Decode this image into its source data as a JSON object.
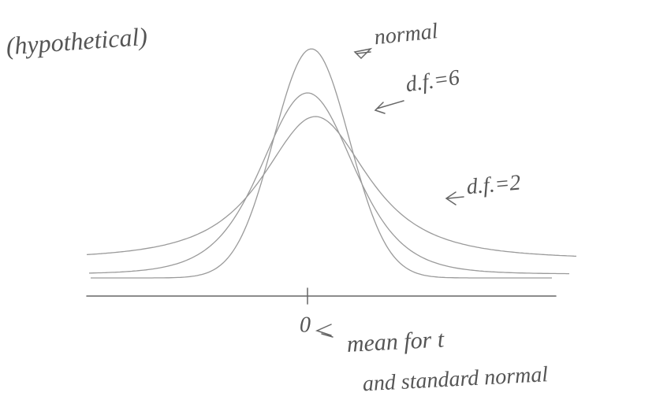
{
  "annotation": "(hypothetical)",
  "labels": {
    "normal": "normal",
    "df6": "d.f.=6",
    "df2": "d.f.=2"
  },
  "axis": {
    "zero": "0",
    "mean_note": "mean for t",
    "mean_note_2": "and standard normal"
  }
}
